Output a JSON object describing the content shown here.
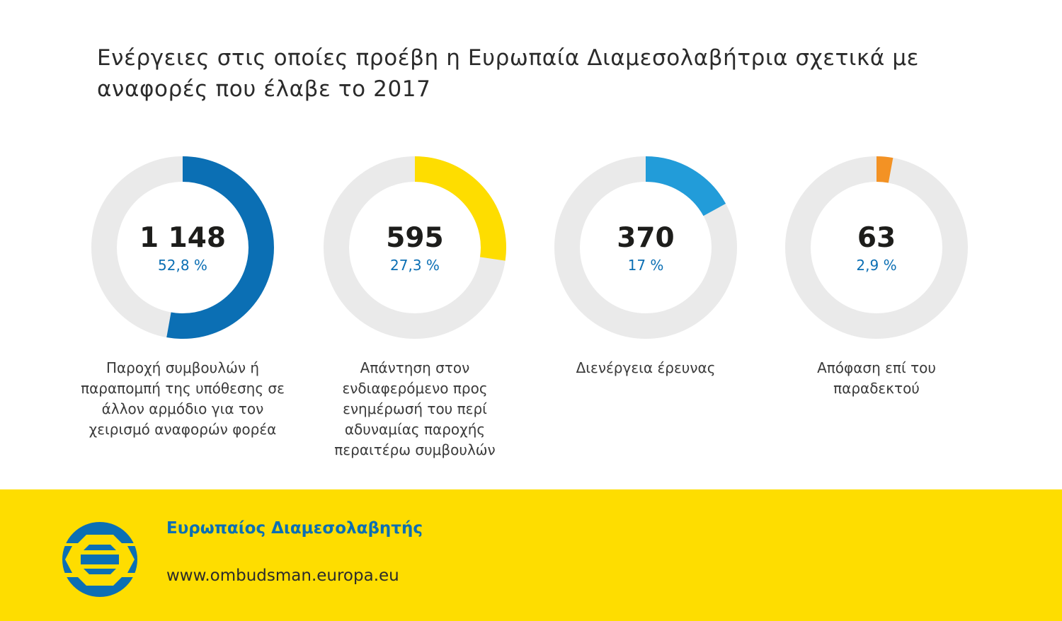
{
  "title": "Ενέργειες στις οποίες προέβη η Ευρωπαία Διαμεσολαβήτρια σχετικά με αναφορές που έλαβε το 2017",
  "chart_data": {
    "type": "pie",
    "title": "Ενέργειες στις οποίες προέβη η Ευρωπαία Διαμεσολαβήτρια σχετικά με αναφορές που έλαβε το 2017",
    "items": [
      {
        "value_label": "1 148",
        "value": 1148,
        "percent": 52.8,
        "percent_label": "52,8 %",
        "color": "#0b6fb4",
        "label": "Παροχή συμβουλών ή παραπομπή της υπόθεσης σε άλλον αρμόδιο για τον χειρισμό αναφορών φορέα"
      },
      {
        "value_label": "595",
        "value": 595,
        "percent": 27.3,
        "percent_label": "27,3 %",
        "color": "#fedd00",
        "label": "Απάντηση στον ενδιαφερόμενο προς ενημέρωσή του περί αδυναμίας παροχής περαιτέρω συμβουλών"
      },
      {
        "value_label": "370",
        "value": 370,
        "percent": 17,
        "percent_label": "17 %",
        "color": "#229cd9",
        "label": "Διενέργεια έρευνας"
      },
      {
        "value_label": "63",
        "value": 63,
        "percent": 2.9,
        "percent_label": "2,9 %",
        "color": "#f39224",
        "label": "Απόφαση επί του παραδεκτού"
      }
    ],
    "track_color": "#eaeaea"
  },
  "footer": {
    "org": "Ευρωπαίος Διαμεσολαβητής",
    "url": "www.ombudsman.europa.eu",
    "logo_icon": "european-ombudsman-logo-icon",
    "logo_color": "#0b6fb4",
    "background": "#fedd00"
  }
}
